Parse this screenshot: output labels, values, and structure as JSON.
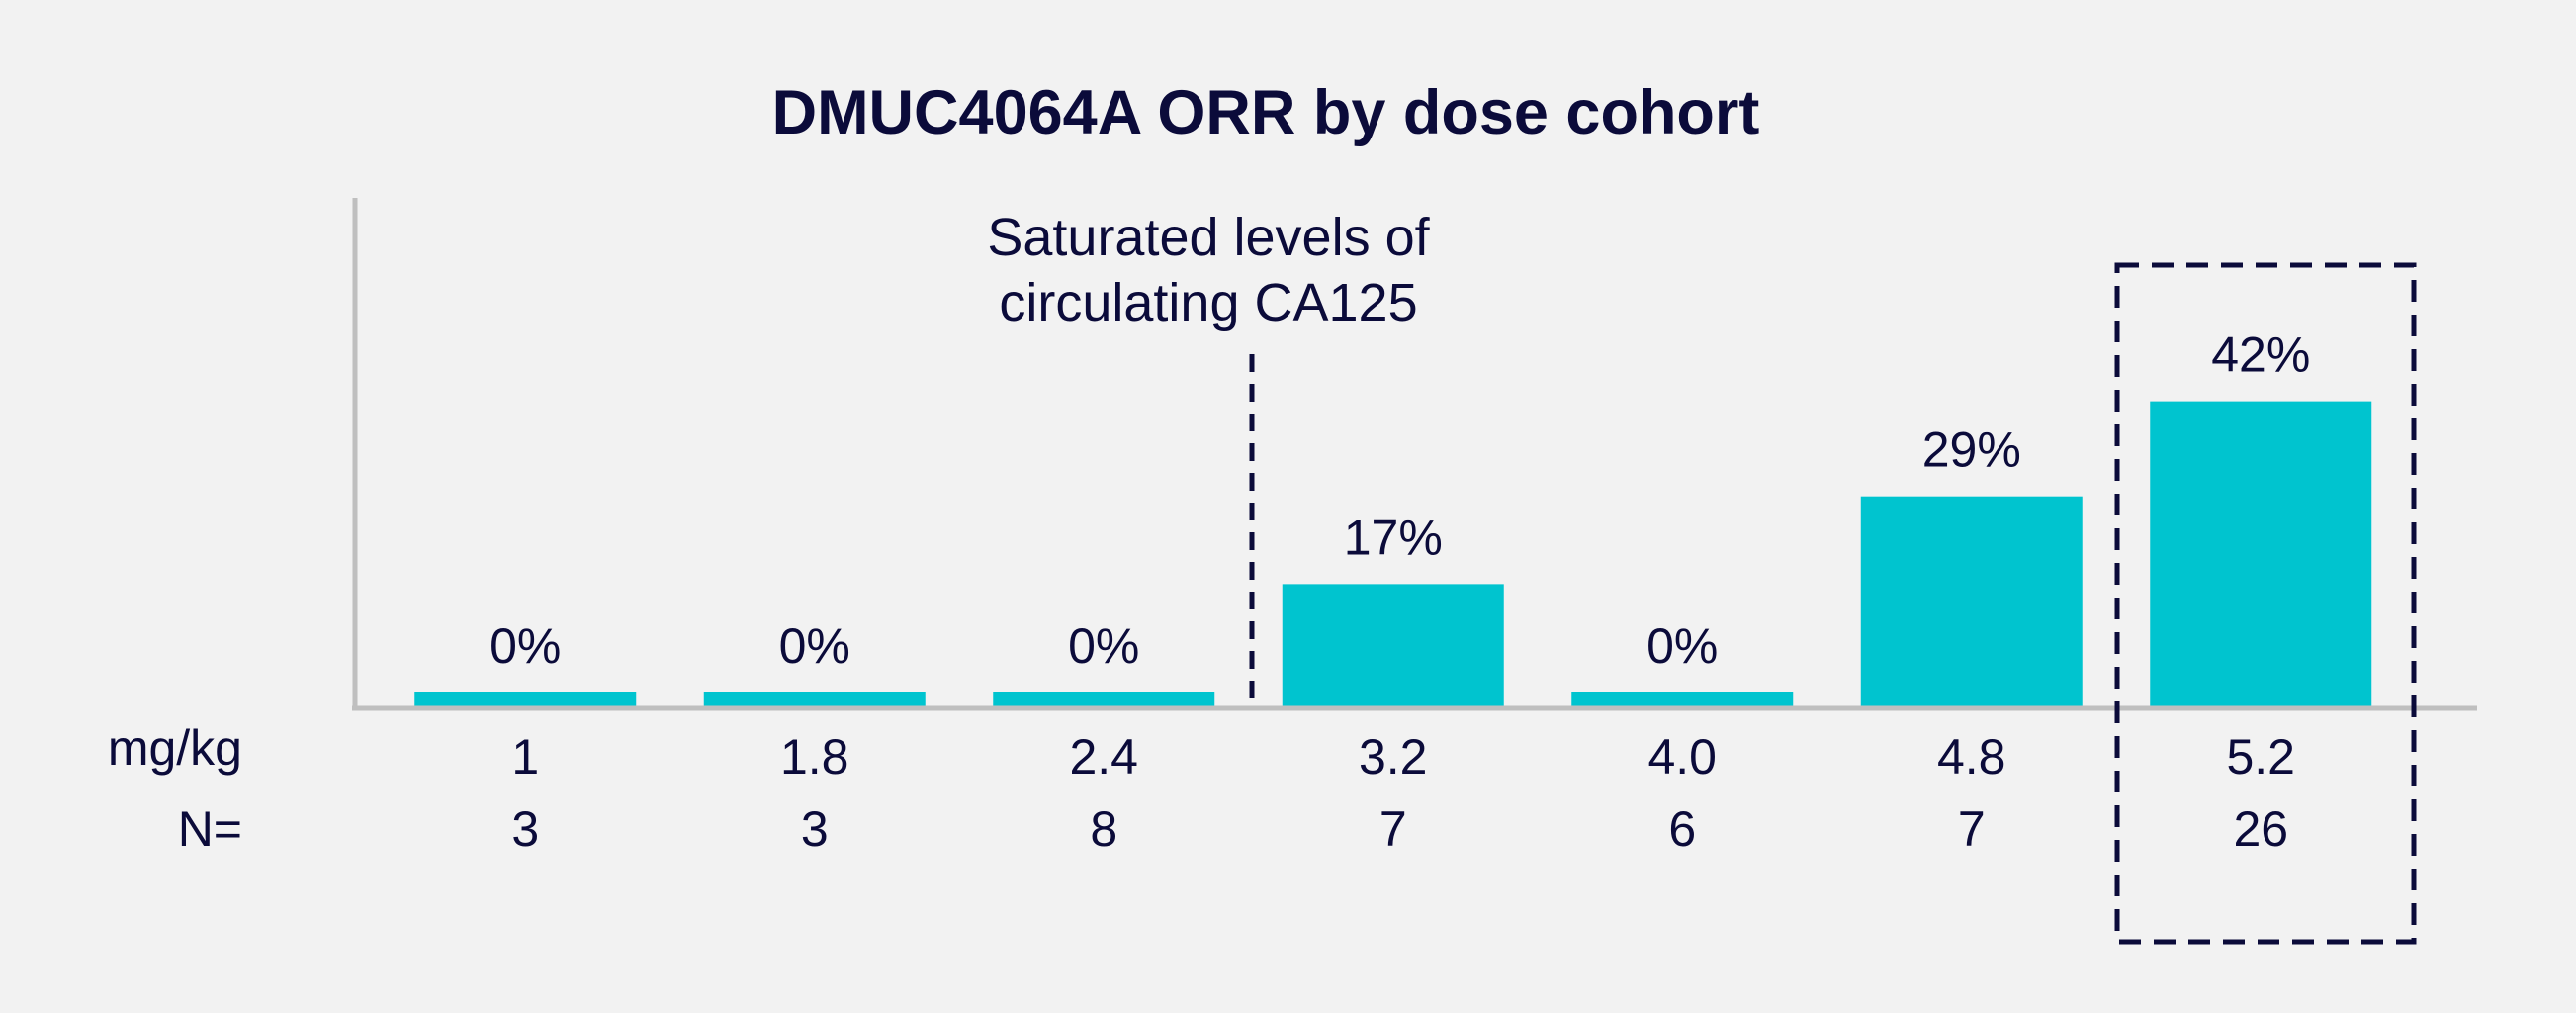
{
  "chart_data": {
    "type": "bar",
    "title": "DMUC4064A ORR by dose cohort",
    "xlabel": "mg/kg",
    "ylabel": "",
    "ylim": [
      0,
      50
    ],
    "categories": [
      "1",
      "1.8",
      "2.4",
      "3.2",
      "4.0",
      "4.8",
      "5.2"
    ],
    "values": [
      0,
      0,
      0,
      17,
      0,
      29,
      42
    ],
    "data_labels": [
      "0%",
      "0%",
      "0%",
      "17%",
      "0%",
      "29%",
      "42%"
    ],
    "n_label": "N=",
    "n_values": [
      "3",
      "3",
      "8",
      "7",
      "6",
      "7",
      "26"
    ],
    "annotation": {
      "lines": [
        "Saturated levels of",
        "circulating CA125"
      ]
    },
    "highlight_category": "5.2",
    "bar_color": "#00c4cf",
    "text_color": "#0b0b3a",
    "axis_color": "#bfbfbf"
  }
}
